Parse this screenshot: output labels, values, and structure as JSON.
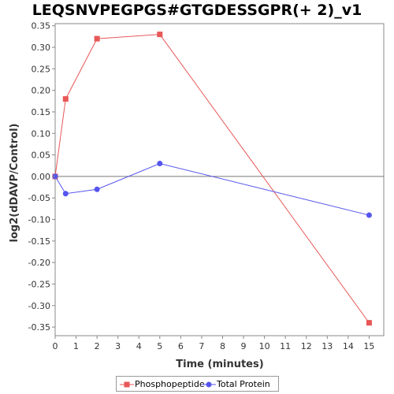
{
  "chart_data": {
    "type": "line",
    "title": "LEQSNVPEGPGS#GTGDESSGPR(+ 2)_v1",
    "xlabel": "Time (minutes)",
    "ylabel": "log2(dDAVP/Control)",
    "xlim": [
      0,
      15.7
    ],
    "ylim": [
      -0.37,
      0.355
    ],
    "xticks": [
      "0",
      "1",
      "2",
      "3",
      "4",
      "5",
      "6",
      "7",
      "8",
      "9",
      "10",
      "11",
      "12",
      "13",
      "14",
      "15"
    ],
    "yticks": [
      "0.35",
      "0.30",
      "0.25",
      "0.20",
      "0.15",
      "0.10",
      "0.05",
      "0.00",
      "-0.05",
      "-0.10",
      "-0.15",
      "-0.20",
      "-0.25",
      "-0.30",
      "-0.35"
    ],
    "grid": false,
    "legend_position": "bottom",
    "series": [
      {
        "name": "Phosphopeptide",
        "color": "#e85757",
        "marker": "square",
        "x": [
          0,
          0.5,
          2,
          5,
          15
        ],
        "y": [
          0.0,
          0.18,
          0.32,
          0.33,
          -0.34
        ]
      },
      {
        "name": "Total Protein",
        "color": "#5555ee",
        "marker": "circle",
        "x": [
          0,
          0.5,
          2,
          5,
          15
        ],
        "y": [
          0.0,
          -0.04,
          -0.03,
          0.03,
          -0.09
        ]
      }
    ]
  }
}
